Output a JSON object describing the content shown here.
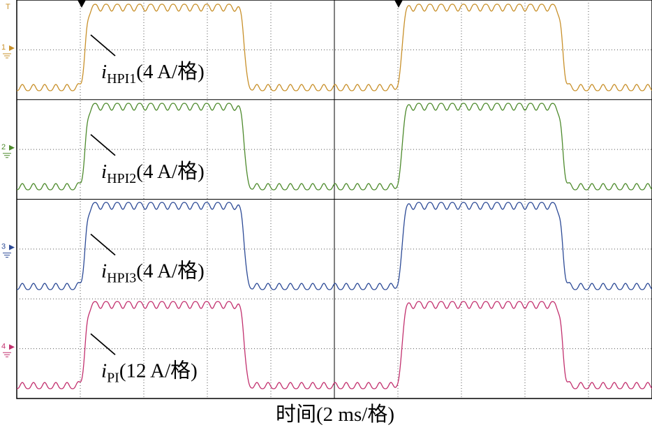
{
  "traces": [
    {
      "marker": "1",
      "symbol": "i",
      "subscript": "HPI1",
      "scale": "(4 A/格)"
    },
    {
      "marker": "2",
      "symbol": "i",
      "subscript": "HPI2",
      "scale": "(4 A/格)"
    },
    {
      "marker": "3",
      "symbol": "i",
      "subscript": "HPI3",
      "scale": "(4 A/格)"
    },
    {
      "marker": "4",
      "symbol": "i",
      "subscript": "PI",
      "scale": "(12 A/格)"
    }
  ],
  "trigger_marker": "T",
  "x_axis_label": "时间(2 ms/格)"
}
